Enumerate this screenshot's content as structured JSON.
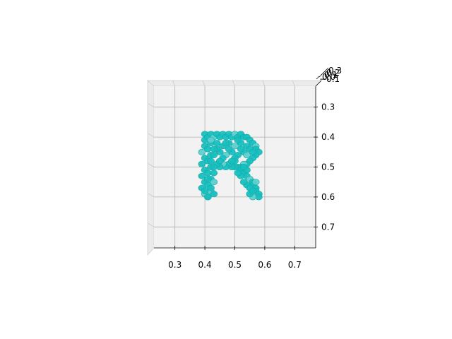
{
  "chart_data": {
    "type": "scatter",
    "projection": "3d",
    "view": "top-down",
    "title": "",
    "xlabel": "",
    "ylabel": "",
    "zlabel": "",
    "xlim": [
      0.23,
      0.77
    ],
    "ylim": [
      0.23,
      0.77
    ],
    "zlim": [
      -0.1,
      0.3
    ],
    "x_ticks": [
      "0.3",
      "0.4",
      "0.5",
      "0.6",
      "0.7"
    ],
    "y_ticks": [
      "0.3",
      "0.4",
      "0.5",
      "0.6",
      "0.7"
    ],
    "z_ticks": [
      "−0.1",
      "0.0",
      "0.1",
      "0.2",
      "0.3"
    ],
    "grid": true,
    "pane_color": "#f2f2f2",
    "marker_color": "#17bfbf",
    "series": [
      {
        "points": [
          [
            0.4,
            0.39
          ],
          [
            0.4,
            0.41
          ],
          [
            0.4,
            0.43
          ],
          [
            0.39,
            0.45
          ],
          [
            0.4,
            0.47
          ],
          [
            0.39,
            0.49
          ],
          [
            0.4,
            0.51
          ],
          [
            0.39,
            0.53
          ],
          [
            0.4,
            0.55
          ],
          [
            0.39,
            0.57
          ],
          [
            0.4,
            0.59
          ],
          [
            0.41,
            0.6
          ],
          [
            0.41,
            0.4
          ],
          [
            0.41,
            0.44
          ],
          [
            0.41,
            0.48
          ],
          [
            0.41,
            0.52
          ],
          [
            0.41,
            0.56
          ],
          [
            0.42,
            0.58
          ],
          [
            0.42,
            0.54
          ],
          [
            0.42,
            0.5
          ],
          [
            0.42,
            0.46
          ],
          [
            0.42,
            0.42
          ],
          [
            0.42,
            0.39
          ],
          [
            0.41,
            0.6
          ],
          [
            0.43,
            0.4
          ],
          [
            0.44,
            0.39
          ],
          [
            0.45,
            0.4
          ],
          [
            0.46,
            0.39
          ],
          [
            0.47,
            0.4
          ],
          [
            0.48,
            0.39
          ],
          [
            0.49,
            0.4
          ],
          [
            0.5,
            0.39
          ],
          [
            0.51,
            0.4
          ],
          [
            0.52,
            0.39
          ],
          [
            0.53,
            0.4
          ],
          [
            0.54,
            0.4
          ],
          [
            0.55,
            0.41
          ],
          [
            0.56,
            0.42
          ],
          [
            0.57,
            0.43
          ],
          [
            0.57,
            0.44
          ],
          [
            0.58,
            0.45
          ],
          [
            0.57,
            0.46
          ],
          [
            0.56,
            0.47
          ],
          [
            0.55,
            0.48
          ],
          [
            0.54,
            0.49
          ],
          [
            0.53,
            0.49
          ],
          [
            0.52,
            0.5
          ],
          [
            0.51,
            0.5
          ],
          [
            0.5,
            0.5
          ],
          [
            0.49,
            0.5
          ],
          [
            0.48,
            0.49
          ],
          [
            0.47,
            0.5
          ],
          [
            0.46,
            0.49
          ],
          [
            0.45,
            0.5
          ],
          [
            0.44,
            0.49
          ],
          [
            0.43,
            0.5
          ],
          [
            0.44,
            0.42
          ],
          [
            0.46,
            0.43
          ],
          [
            0.48,
            0.42
          ],
          [
            0.5,
            0.43
          ],
          [
            0.52,
            0.42
          ],
          [
            0.54,
            0.43
          ],
          [
            0.55,
            0.44
          ],
          [
            0.53,
            0.45
          ],
          [
            0.51,
            0.46
          ],
          [
            0.49,
            0.45
          ],
          [
            0.47,
            0.46
          ],
          [
            0.45,
            0.45
          ],
          [
            0.43,
            0.46
          ],
          [
            0.44,
            0.44
          ],
          [
            0.46,
            0.47
          ],
          [
            0.5,
            0.47
          ],
          [
            0.52,
            0.44
          ],
          [
            0.54,
            0.46
          ],
          [
            0.56,
            0.45
          ],
          [
            0.48,
            0.44
          ],
          [
            0.45,
            0.48
          ],
          [
            0.52,
            0.51
          ],
          [
            0.53,
            0.52
          ],
          [
            0.54,
            0.53
          ],
          [
            0.55,
            0.54
          ],
          [
            0.56,
            0.55
          ],
          [
            0.56,
            0.56
          ],
          [
            0.57,
            0.57
          ],
          [
            0.57,
            0.58
          ],
          [
            0.58,
            0.59
          ],
          [
            0.58,
            0.6
          ],
          [
            0.56,
            0.6
          ],
          [
            0.55,
            0.59
          ],
          [
            0.54,
            0.56
          ],
          [
            0.55,
            0.57
          ],
          [
            0.53,
            0.55
          ],
          [
            0.52,
            0.53
          ],
          [
            0.51,
            0.52
          ],
          [
            0.57,
            0.55
          ],
          [
            0.56,
            0.58
          ],
          [
            0.54,
            0.51
          ],
          [
            0.53,
            0.5
          ],
          [
            0.5,
            0.48
          ],
          [
            0.49,
            0.48
          ],
          [
            0.43,
            0.52
          ],
          [
            0.43,
            0.55
          ],
          [
            0.42,
            0.57
          ],
          [
            0.43,
            0.59
          ],
          [
            0.4,
            0.58
          ],
          [
            0.41,
            0.54
          ],
          [
            0.42,
            0.48
          ],
          [
            0.43,
            0.44
          ],
          [
            0.42,
            0.41
          ],
          [
            0.47,
            0.42
          ],
          [
            0.51,
            0.41
          ]
        ]
      }
    ]
  }
}
